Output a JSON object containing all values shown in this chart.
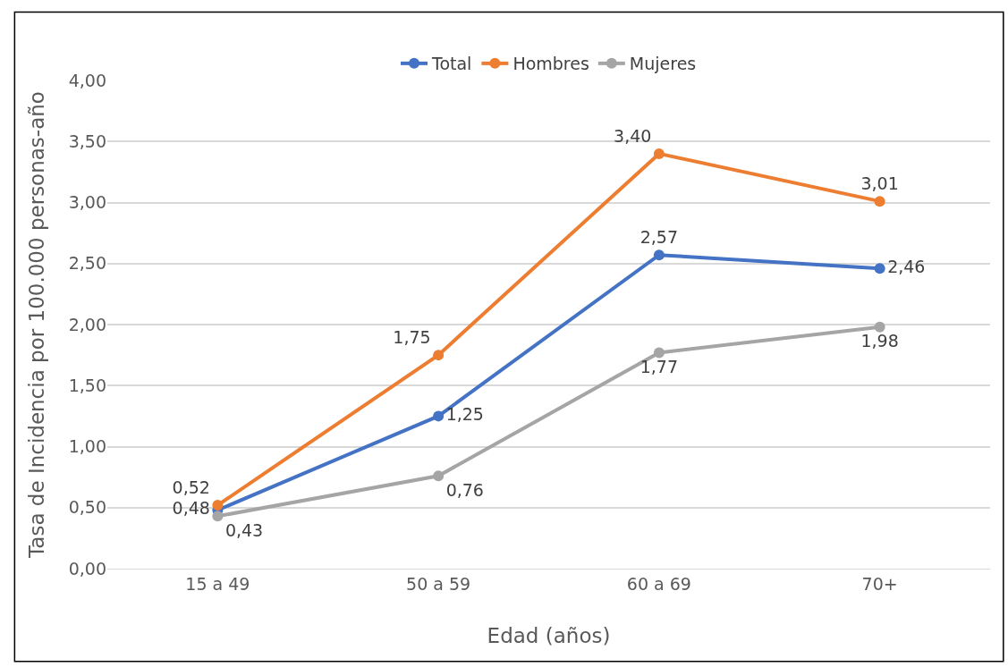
{
  "chart_data": {
    "type": "line",
    "xlabel": "Edad (años)",
    "ylabel": "Tasa de Incidencia por 100.000 personas-año",
    "categories": [
      "15 a 49",
      "50 a 59",
      "60 a 69",
      "70+"
    ],
    "series": [
      {
        "name": "Total",
        "color": "#4472c4",
        "values": [
          0.48,
          1.25,
          2.57,
          2.46
        ],
        "value_labels": [
          "0,48",
          "1,25",
          "2,57",
          "2,46"
        ]
      },
      {
        "name": "Hombres",
        "color": "#ed7d31",
        "values": [
          0.52,
          1.75,
          3.4,
          3.01
        ],
        "value_labels": [
          "0,52",
          "1,75",
          "3,40",
          "3,01"
        ]
      },
      {
        "name": "Mujeres",
        "color": "#a5a5a5",
        "values": [
          0.43,
          0.76,
          1.77,
          1.98
        ],
        "value_labels": [
          "0,43",
          "0,76",
          "1,77",
          "1,98"
        ]
      }
    ],
    "ylim": [
      0,
      4
    ],
    "yticks": [
      {
        "value": 0,
        "label": "0,00"
      },
      {
        "value": 0.5,
        "label": "0,50"
      },
      {
        "value": 1,
        "label": "1,00"
      },
      {
        "value": 1.5,
        "label": "1,50"
      },
      {
        "value": 2,
        "label": "2,00"
      },
      {
        "value": 2.5,
        "label": "2,50"
      },
      {
        "value": 3,
        "label": "3,00"
      },
      {
        "value": 3.5,
        "label": "3,50"
      },
      {
        "value": 4,
        "label": "4,00"
      }
    ],
    "grid": "y",
    "legend": "top",
    "marker": "circle",
    "line_style": "solid"
  }
}
